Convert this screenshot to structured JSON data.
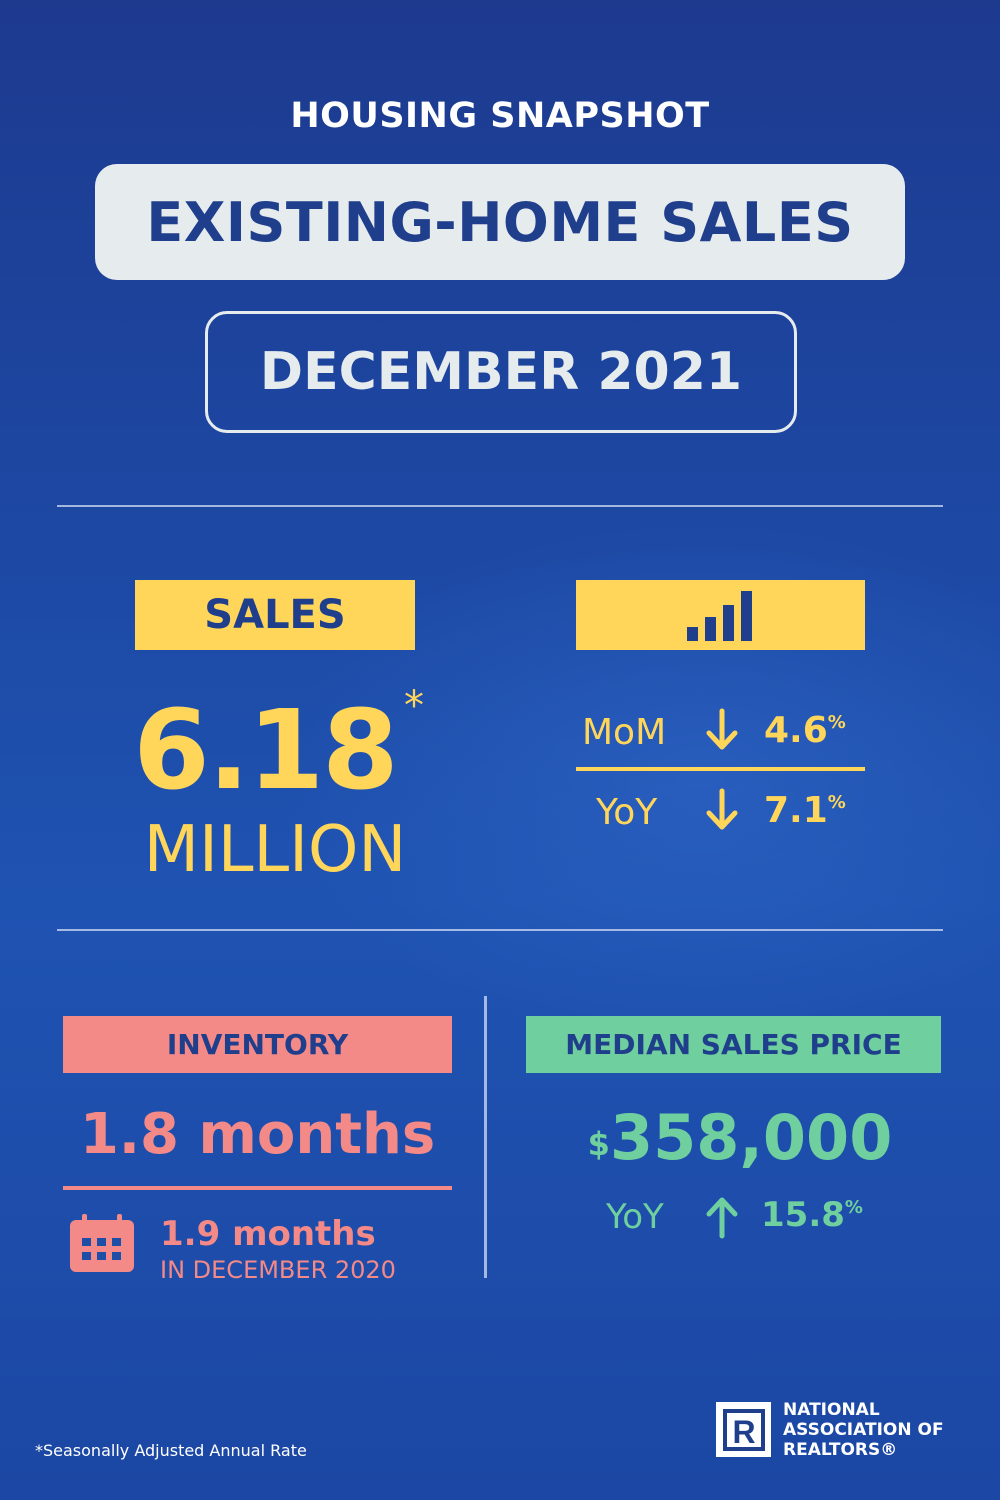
{
  "header": {
    "kicker": "HOUSING SNAPSHOT",
    "title": "EXISTING-HOME SALES",
    "month": "DECEMBER 2021"
  },
  "sales": {
    "label": "SALES",
    "value": "6.18",
    "asterisk": "*",
    "unit": "MILLION"
  },
  "change": {
    "icon": "bar-chart-icon",
    "mom": {
      "label": "MoM",
      "direction": "down",
      "value": "4.6",
      "suffix": "%"
    },
    "yoy": {
      "label": "YoY",
      "direction": "down",
      "value": "7.1",
      "suffix": "%"
    }
  },
  "inventory": {
    "label": "INVENTORY",
    "value": "1.8 months",
    "icon": "calendar-icon",
    "previous_value": "1.9 months",
    "previous_label": "IN DECEMBER 2020"
  },
  "median_price": {
    "label": "MEDIAN SALES PRICE",
    "currency": "$",
    "value": "358,000",
    "yoy": {
      "label": "YoY",
      "direction": "up",
      "value": "15.8",
      "suffix": "%"
    }
  },
  "footnote": "*Seasonally Adjusted Annual Rate",
  "logo": {
    "mark": "R",
    "lines": [
      "NATIONAL",
      "ASSOCIATION OF",
      "REALTORS®"
    ]
  },
  "colors": {
    "background": "#1d4aa6",
    "navy": "#1f3e8c",
    "yellow": "#ffd65a",
    "pink": "#f48a87",
    "green": "#6fcf9e",
    "light": "#e6ebee"
  }
}
